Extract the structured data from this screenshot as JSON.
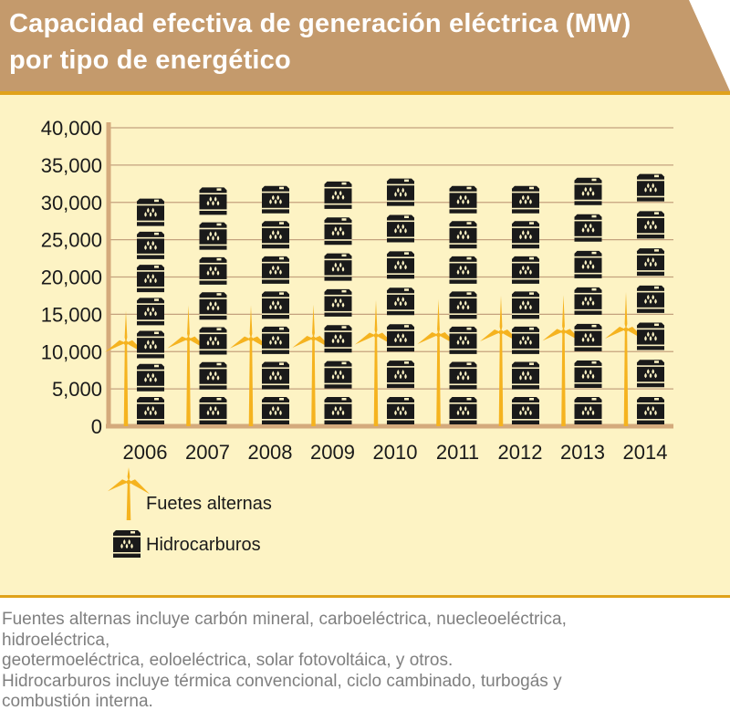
{
  "title_line1": "Capacidad efectiva de generación eléctrica (MW)",
  "title_line2": "por tipo de energético",
  "colors": {
    "banner": "#c49a6c",
    "panel": "#fdf3c4",
    "gridline": "#c4a27e",
    "axis": "#d4aa7c",
    "turbine": "#f5b31f",
    "barrel": "#1a1a1a"
  },
  "chart_data": {
    "type": "bar",
    "categories": [
      "2006",
      "2007",
      "2008",
      "2009",
      "2010",
      "2011",
      "2012",
      "2013",
      "2014"
    ],
    "series": [
      {
        "name": "Fuetes alternas",
        "icon": "wind-turbine-icon",
        "values": [
          15500,
          16200,
          16200,
          16300,
          16900,
          17000,
          17500,
          17600,
          18000
        ]
      },
      {
        "name": "Hidrocarburos",
        "icon": "oil-barrel-icon",
        "values": [
          30500,
          32000,
          32200,
          32800,
          33200,
          32200,
          32200,
          33300,
          33800
        ]
      }
    ],
    "ylim": [
      0,
      40000
    ],
    "yticks": [
      "0",
      "5,000",
      "10,000",
      "15,000",
      "20,000",
      "25,000",
      "30,000",
      "35,000",
      "40,000"
    ],
    "grid": true,
    "legend_position": "bottom-left"
  },
  "notes": [
    "Fuentes alternas incluye carbón mineral, carboeléctrica, nuecleoeléctrica,",
    "hidroeléctrica,",
    "geotermoeléctrica, eoloeléctrica, solar fotovoltáica, y otros.",
    "Hidrocarburos incluye térmica convencional, ciclo cambinado, turbogás y",
    "combustión interna."
  ]
}
